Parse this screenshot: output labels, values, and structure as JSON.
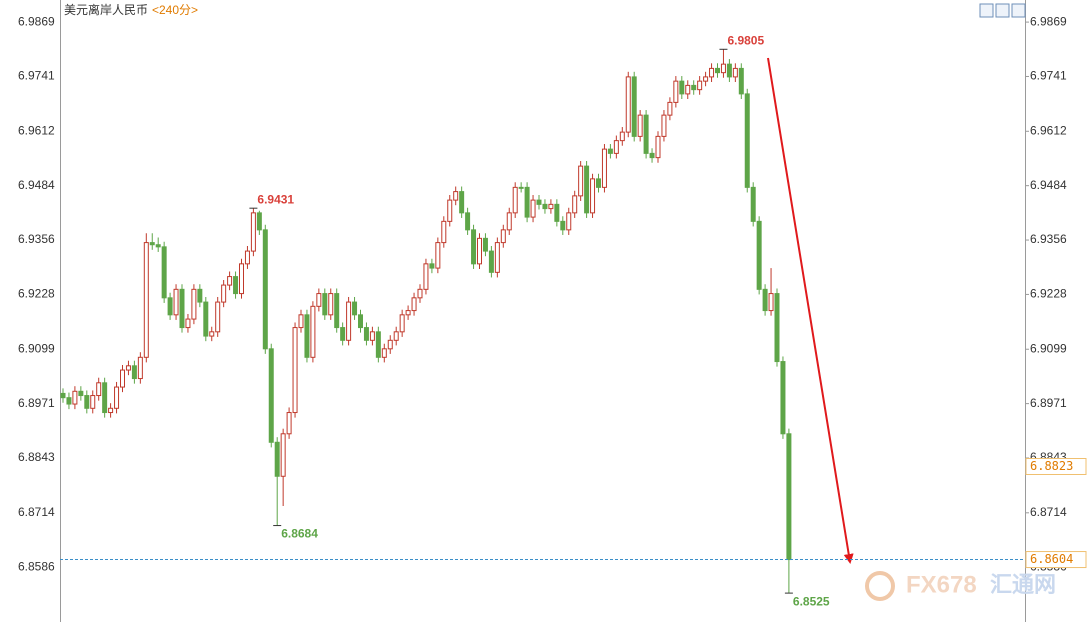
{
  "chart_data": {
    "type": "candlestick",
    "title": "美元离岸人民币",
    "subtitle": "<240分>",
    "ylim": [
      6.8457,
      6.9921
    ],
    "yticks": [
      6.9869,
      6.9741,
      6.9612,
      6.9484,
      6.9356,
      6.9228,
      6.9099,
      6.8971,
      6.8843,
      6.8714,
      6.8586
    ],
    "grid": false,
    "up_color": "#c0392b",
    "down_color": "#5ea548",
    "annotations": [
      6.9805,
      6.9431,
      6.8684,
      6.8525
    ],
    "price_labels": [
      6.8823
    ],
    "reference_line": 6.8604,
    "watermark": [
      "FX678",
      "汇通网"
    ],
    "candles": [
      [
        6.8995,
        6.9007,
        6.8973,
        6.8985
      ],
      [
        6.8985,
        6.8997,
        6.8958,
        6.897
      ],
      [
        6.897,
        6.9012,
        6.8958,
        6.9
      ],
      [
        6.9,
        6.9012,
        6.8978,
        6.899
      ],
      [
        6.899,
        6.9002,
        6.8948,
        6.896
      ],
      [
        6.896,
        6.9002,
        6.8948,
        6.899
      ],
      [
        6.899,
        6.9032,
        6.8978,
        6.902
      ],
      [
        6.902,
        6.9032,
        6.8938,
        6.895
      ],
      [
        6.895,
        6.8972,
        6.8938,
        6.896
      ],
      [
        6.896,
        6.9022,
        6.8948,
        6.901
      ],
      [
        6.901,
        6.9062,
        6.8998,
        6.905
      ],
      [
        6.905,
        6.9072,
        6.9038,
        6.906
      ],
      [
        6.906,
        6.9072,
        6.9018,
        6.903
      ],
      [
        6.903,
        6.9092,
        6.9018,
        6.908
      ],
      [
        6.908,
        6.9372,
        6.9068,
        6.935
      ],
      [
        6.935,
        6.9372,
        6.9333,
        6.9345
      ],
      [
        6.9345,
        6.9362,
        6.9328,
        6.934
      ],
      [
        6.934,
        6.9352,
        6.9208,
        6.922
      ],
      [
        6.922,
        6.9232,
        6.9168,
        6.918
      ],
      [
        6.918,
        6.9252,
        6.9168,
        6.924
      ],
      [
        6.924,
        6.9252,
        6.9138,
        6.915
      ],
      [
        6.915,
        6.9182,
        6.9138,
        6.917
      ],
      [
        6.917,
        6.9252,
        6.9158,
        6.924
      ],
      [
        6.924,
        6.9252,
        6.9198,
        6.921
      ],
      [
        6.921,
        6.9222,
        6.9118,
        6.913
      ],
      [
        6.913,
        6.9152,
        6.9118,
        6.914
      ],
      [
        6.914,
        6.9222,
        6.9128,
        6.921
      ],
      [
        6.921,
        6.9262,
        6.9198,
        6.925
      ],
      [
        6.925,
        6.9282,
        6.9238,
        6.927
      ],
      [
        6.927,
        6.9282,
        6.9218,
        6.923
      ],
      [
        6.923,
        6.9312,
        6.9218,
        6.93
      ],
      [
        6.93,
        6.9342,
        6.9288,
        6.933
      ],
      [
        6.933,
        6.9431,
        6.9318,
        6.942
      ],
      [
        6.942,
        6.9425,
        6.9368,
        6.938
      ],
      [
        6.938,
        6.9392,
        6.9088,
        6.91
      ],
      [
        6.91,
        6.9112,
        6.8868,
        6.888
      ],
      [
        6.888,
        6.8892,
        6.8684,
        6.88
      ],
      [
        6.88,
        6.8912,
        6.873,
        6.89
      ],
      [
        6.89,
        6.8962,
        6.8888,
        6.895
      ],
      [
        6.895,
        6.9162,
        6.8938,
        6.915
      ],
      [
        6.915,
        6.9192,
        6.9138,
        6.918
      ],
      [
        6.918,
        6.9192,
        6.9068,
        6.908
      ],
      [
        6.908,
        6.9212,
        6.9068,
        6.92
      ],
      [
        6.92,
        6.9242,
        6.9188,
        6.923
      ],
      [
        6.923,
        6.9242,
        6.9168,
        6.918
      ],
      [
        6.918,
        6.9242,
        6.9168,
        6.923
      ],
      [
        6.923,
        6.9242,
        6.9138,
        6.915
      ],
      [
        6.915,
        6.9162,
        6.9108,
        6.912
      ],
      [
        6.912,
        6.9222,
        6.9108,
        6.921
      ],
      [
        6.921,
        6.9222,
        6.9168,
        6.918
      ],
      [
        6.918,
        6.9192,
        6.9138,
        6.915
      ],
      [
        6.915,
        6.9162,
        6.9108,
        6.912
      ],
      [
        6.912,
        6.9152,
        6.9108,
        6.914
      ],
      [
        6.914,
        6.9152,
        6.9068,
        6.908
      ],
      [
        6.908,
        6.9112,
        6.9068,
        6.91
      ],
      [
        6.91,
        6.9132,
        6.9088,
        6.912
      ],
      [
        6.912,
        6.9152,
        6.9108,
        6.914
      ],
      [
        6.914,
        6.9192,
        6.9128,
        6.918
      ],
      [
        6.918,
        6.9202,
        6.9168,
        6.919
      ],
      [
        6.919,
        6.9232,
        6.9178,
        6.922
      ],
      [
        6.922,
        6.9252,
        6.9208,
        6.924
      ],
      [
        6.924,
        6.9312,
        6.9228,
        6.93
      ],
      [
        6.93,
        6.9312,
        6.9278,
        6.929
      ],
      [
        6.929,
        6.9362,
        6.9278,
        6.935
      ],
      [
        6.935,
        6.9412,
        6.9338,
        6.94
      ],
      [
        6.94,
        6.9462,
        6.9388,
        6.945
      ],
      [
        6.945,
        6.9482,
        6.9438,
        6.947
      ],
      [
        6.947,
        6.9482,
        6.9408,
        6.942
      ],
      [
        6.942,
        6.9432,
        6.9368,
        6.938
      ],
      [
        6.938,
        6.9392,
        6.9288,
        6.93
      ],
      [
        6.93,
        6.9372,
        6.9288,
        6.936
      ],
      [
        6.936,
        6.9372,
        6.9318,
        6.933
      ],
      [
        6.933,
        6.9342,
        6.9268,
        6.928
      ],
      [
        6.928,
        6.9362,
        6.9268,
        6.935
      ],
      [
        6.935,
        6.9392,
        6.9338,
        6.938
      ],
      [
        6.938,
        6.9432,
        6.9368,
        6.942
      ],
      [
        6.942,
        6.9492,
        6.9408,
        6.948
      ],
      [
        6.948,
        6.9492,
        6.9468,
        6.948
      ],
      [
        6.948,
        6.9492,
        6.9398,
        6.941
      ],
      [
        6.941,
        6.9462,
        6.9398,
        6.945
      ],
      [
        6.945,
        6.9462,
        6.9428,
        6.944
      ],
      [
        6.944,
        6.9452,
        6.9418,
        6.943
      ],
      [
        6.943,
        6.9452,
        6.9418,
        6.944
      ],
      [
        6.944,
        6.9452,
        6.9388,
        6.94
      ],
      [
        6.94,
        6.9412,
        6.9368,
        6.938
      ],
      [
        6.938,
        6.9432,
        6.9368,
        6.942
      ],
      [
        6.942,
        6.9472,
        6.9408,
        6.946
      ],
      [
        6.946,
        6.9542,
        6.9448,
        6.953
      ],
      [
        6.953,
        6.9542,
        6.9408,
        6.942
      ],
      [
        6.942,
        6.9512,
        6.9408,
        6.95
      ],
      [
        6.95,
        6.9512,
        6.9468,
        6.948
      ],
      [
        6.948,
        6.9582,
        6.9468,
        6.957
      ],
      [
        6.957,
        6.9582,
        6.9548,
        6.956
      ],
      [
        6.956,
        6.9602,
        6.9548,
        6.959
      ],
      [
        6.959,
        6.9622,
        6.9578,
        6.961
      ],
      [
        6.961,
        6.9752,
        6.9598,
        6.974
      ],
      [
        6.974,
        6.9752,
        6.9588,
        6.96
      ],
      [
        6.96,
        6.9662,
        6.9588,
        6.965
      ],
      [
        6.965,
        6.9662,
        6.9548,
        6.956
      ],
      [
        6.956,
        6.9572,
        6.9538,
        6.955
      ],
      [
        6.955,
        6.9612,
        6.9538,
        6.96
      ],
      [
        6.96,
        6.9662,
        6.9588,
        6.965
      ],
      [
        6.965,
        6.9692,
        6.9638,
        6.968
      ],
      [
        6.968,
        6.9742,
        6.9668,
        6.973
      ],
      [
        6.973,
        6.9742,
        6.9688,
        6.97
      ],
      [
        6.97,
        6.9732,
        6.9688,
        6.972
      ],
      [
        6.972,
        6.9732,
        6.9698,
        6.971
      ],
      [
        6.971,
        6.9742,
        6.9698,
        6.973
      ],
      [
        6.973,
        6.9752,
        6.9718,
        6.974
      ],
      [
        6.974,
        6.9772,
        6.9728,
        6.976
      ],
      [
        6.976,
        6.9772,
        6.9738,
        6.975
      ],
      [
        6.975,
        6.9805,
        6.9738,
        6.977
      ],
      [
        6.977,
        6.9782,
        6.9728,
        6.974
      ],
      [
        6.974,
        6.9772,
        6.9728,
        6.976
      ],
      [
        6.976,
        6.9772,
        6.9688,
        6.97
      ],
      [
        6.97,
        6.9712,
        6.9468,
        6.948
      ],
      [
        6.948,
        6.9492,
        6.9388,
        6.94
      ],
      [
        6.94,
        6.9412,
        6.9228,
        6.924
      ],
      [
        6.924,
        6.9252,
        6.9178,
        6.919
      ],
      [
        6.919,
        6.929,
        6.9178,
        6.923
      ],
      [
        6.923,
        6.9242,
        6.9058,
        6.907
      ],
      [
        6.907,
        6.9082,
        6.8888,
        6.89
      ],
      [
        6.89,
        6.8912,
        6.8525,
        6.8604
      ]
    ]
  }
}
